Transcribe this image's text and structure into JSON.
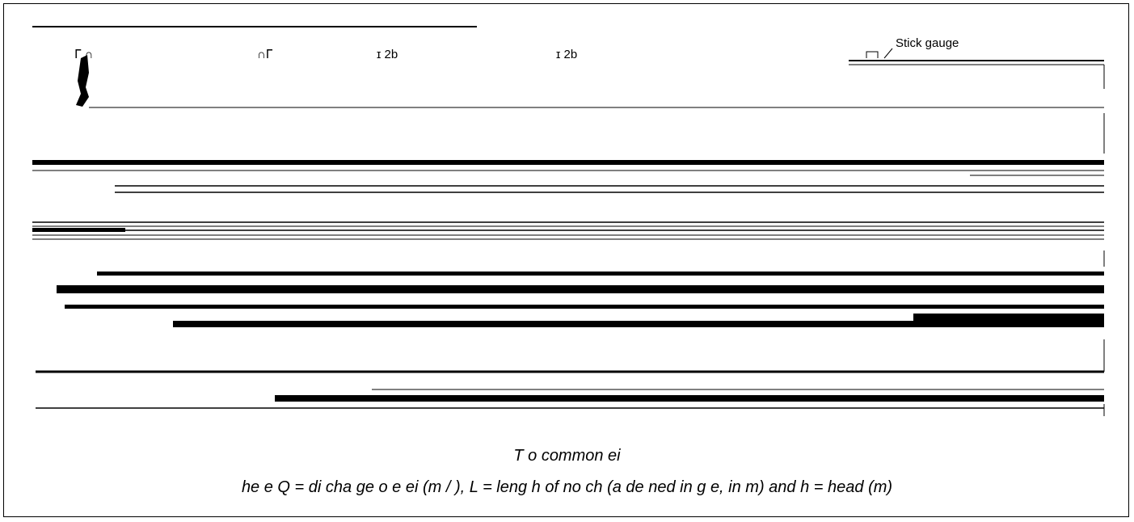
{
  "figure": {
    "gauge_label": "Stick gauge",
    "fragment_labels": [
      "ᒥ ∩",
      "∩ᒥ",
      "ɪ 2b",
      "ɪ 2b"
    ]
  },
  "caption": {
    "title": "T  o common    ei",
    "note": "he e Q = di  cha ge o  e     ei  (m  /  ), L = leng h of no ch (a   de  ned in    g    e, in m) and h = head (m)"
  }
}
